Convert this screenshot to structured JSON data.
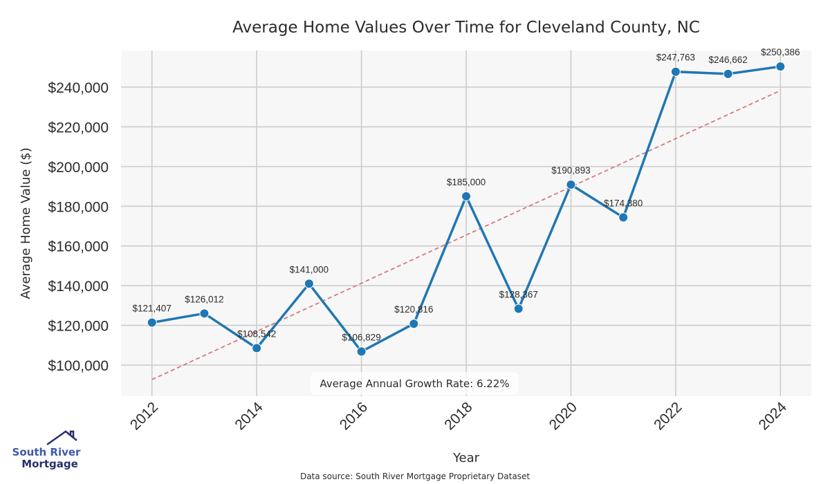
{
  "chart_data": {
    "type": "line",
    "title": "Average Home Values Over Time for Cleveland County, NC",
    "xlabel": "Year",
    "ylabel": "Average Home Value ($)",
    "x": [
      2012,
      2013,
      2014,
      2015,
      2016,
      2017,
      2018,
      2019,
      2020,
      2021,
      2022,
      2023,
      2024
    ],
    "series": [
      {
        "name": "Average Home Value",
        "values": [
          121407,
          126012,
          108542,
          141000,
          106829,
          120816,
          185000,
          128367,
          190893,
          174380,
          247763,
          246662,
          250386
        ],
        "data_labels": [
          "$121,407",
          "$126,012",
          "$108,542",
          "$141,000",
          "$106,829",
          "$120,816",
          "$185,000",
          "$128,367",
          "$190,893",
          "$174,380",
          "$247,763",
          "$246,662",
          "$250,386"
        ],
        "color": "#1f77b4"
      }
    ],
    "trend_line": {
      "name": "Linear trend",
      "start": {
        "x": 2012,
        "y": 92700
      },
      "end": {
        "x": 2024,
        "y": 238300
      },
      "color": "#d9777a",
      "style": "dashed"
    },
    "xticks": [
      2012,
      2014,
      2016,
      2018,
      2020,
      2022,
      2024
    ],
    "xtick_labels": [
      "2012",
      "2014",
      "2016",
      "2018",
      "2020",
      "2022",
      "2024"
    ],
    "yticks": [
      100000,
      120000,
      140000,
      160000,
      180000,
      200000,
      220000,
      240000
    ],
    "ytick_labels": [
      "$100,000",
      "$120,000",
      "$140,000",
      "$160,000",
      "$180,000",
      "$200,000",
      "$220,000",
      "$240,000"
    ],
    "xlim": [
      2011.41,
      2024.59
    ],
    "ylim": [
      84330,
      258460
    ],
    "grid": true,
    "annotation": "Average Annual Growth Rate: 6.22%",
    "source_note": "Data source: South River Mortgage Proprietary Dataset",
    "plot_background": "#f7f7f7",
    "grid_color": "#cccccc"
  },
  "logo": {
    "line1": "South River",
    "line2": "Mortgage",
    "color1": "#3d5aa8",
    "color2": "#27306b"
  }
}
